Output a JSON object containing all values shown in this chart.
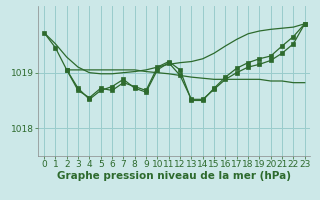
{
  "background_color": "#cce8e8",
  "grid_color": "#99cccc",
  "line_color": "#2d6a2d",
  "marker_color": "#2d6a2d",
  "title": "Graphe pression niveau de la mer (hPa)",
  "title_fontsize": 7.5,
  "tick_fontsize": 6.5,
  "xlim": [
    -0.5,
    23.5
  ],
  "ylim": [
    1017.5,
    1020.2
  ],
  "yticks": [
    1018,
    1019
  ],
  "xticks": [
    0,
    1,
    2,
    3,
    4,
    5,
    6,
    7,
    8,
    9,
    10,
    11,
    12,
    13,
    14,
    15,
    16,
    17,
    18,
    19,
    20,
    21,
    22,
    23
  ],
  "series_no_marker_1": {
    "x": [
      0,
      1,
      2,
      3,
      4,
      5,
      6,
      7,
      8,
      9,
      10,
      11,
      12,
      13,
      14,
      15,
      16,
      17,
      18,
      19,
      20,
      21,
      22,
      23
    ],
    "y": [
      1019.72,
      1019.52,
      1019.28,
      1019.1,
      1019.0,
      1018.98,
      1018.98,
      1019.0,
      1019.02,
      1019.05,
      1019.1,
      1019.15,
      1019.18,
      1019.2,
      1019.25,
      1019.35,
      1019.48,
      1019.6,
      1019.7,
      1019.75,
      1019.78,
      1019.8,
      1019.82,
      1019.88
    ]
  },
  "series_no_marker_2": {
    "x": [
      2,
      3,
      4,
      5,
      6,
      7,
      8,
      9,
      10,
      11,
      12,
      13,
      14,
      15,
      16,
      17,
      18,
      19,
      20,
      21,
      22,
      23
    ],
    "y": [
      1019.05,
      1019.05,
      1019.05,
      1019.05,
      1019.05,
      1019.05,
      1019.05,
      1019.02,
      1019.0,
      1018.98,
      1018.95,
      1018.92,
      1018.9,
      1018.88,
      1018.88,
      1018.88,
      1018.88,
      1018.88,
      1018.85,
      1018.85,
      1018.82,
      1018.82
    ]
  },
  "series_marker_1": {
    "x": [
      0,
      1,
      2,
      3,
      4,
      5,
      6,
      7,
      8,
      9,
      10,
      11,
      12,
      13,
      14,
      15,
      16,
      17,
      18,
      19,
      20,
      21,
      22,
      23
    ],
    "y": [
      1019.72,
      1019.45,
      1019.05,
      1018.68,
      1018.55,
      1018.72,
      1018.68,
      1018.82,
      1018.75,
      1018.68,
      1019.1,
      1019.2,
      1019.05,
      1018.5,
      1018.5,
      1018.72,
      1018.92,
      1019.08,
      1019.18,
      1019.25,
      1019.3,
      1019.48,
      1019.65,
      1019.88
    ]
  },
  "series_marker_2": {
    "x": [
      2,
      3,
      4,
      5,
      6,
      7,
      8,
      9,
      10,
      11,
      12,
      13,
      14,
      15,
      16,
      17,
      18,
      19,
      20,
      21,
      22,
      23
    ],
    "y": [
      1019.05,
      1018.72,
      1018.52,
      1018.68,
      1018.75,
      1018.88,
      1018.72,
      1018.65,
      1019.05,
      1019.18,
      1018.95,
      1018.52,
      1018.52,
      1018.7,
      1018.88,
      1019.0,
      1019.1,
      1019.15,
      1019.22,
      1019.35,
      1019.52,
      1019.88
    ]
  }
}
